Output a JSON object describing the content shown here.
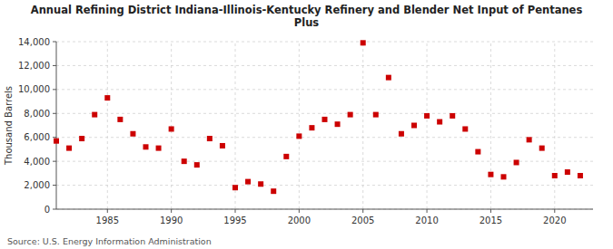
{
  "chart_data": {
    "type": "scatter",
    "title": "Annual Refining District Indiana-Illinois-Kentucky Refinery and Blender Net Input of Pentanes\nPlus",
    "ylabel": "Thousand Barrels",
    "source": "Source: U.S. Energy Information Administration",
    "color": "#cc0000",
    "marker": "square",
    "grid": true,
    "xlim": [
      1981,
      2023
    ],
    "ylim": [
      0,
      14000
    ],
    "xticks": [
      1985,
      1990,
      1995,
      2000,
      2005,
      2010,
      2015,
      2020
    ],
    "yticks": [
      0,
      {
        "value": 2000,
        "label": "2,000"
      },
      {
        "value": 4000,
        "label": "4,000"
      },
      {
        "value": 6000,
        "label": "6,000"
      },
      {
        "value": 8000,
        "label": "8,000"
      },
      {
        "value": 10000,
        "label": "10,000"
      },
      {
        "value": 12000,
        "label": "12,000"
      },
      {
        "value": 14000,
        "label": "14,000"
      }
    ],
    "x": [
      1981,
      1982,
      1983,
      1984,
      1985,
      1986,
      1987,
      1988,
      1989,
      1990,
      1991,
      1992,
      1993,
      1994,
      1995,
      1996,
      1997,
      1998,
      1999,
      2000,
      2001,
      2002,
      2003,
      2004,
      2005,
      2006,
      2007,
      2008,
      2009,
      2010,
      2011,
      2012,
      2013,
      2014,
      2015,
      2016,
      2017,
      2018,
      2019,
      2020,
      2021,
      2022
    ],
    "values": [
      5700,
      5100,
      5900,
      7900,
      9300,
      7500,
      6300,
      5200,
      5100,
      6700,
      4000,
      3700,
      5900,
      5300,
      1800,
      2300,
      2100,
      1500,
      4400,
      6100,
      6800,
      7500,
      7100,
      7900,
      13900,
      7900,
      11000,
      6300,
      7000,
      7800,
      7300,
      7800,
      6700,
      4800,
      2900,
      2700,
      3900,
      5800,
      5100,
      2800,
      3100,
      2800
    ]
  }
}
